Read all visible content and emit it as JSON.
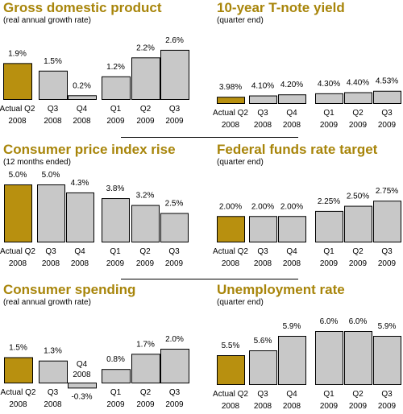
{
  "chart_data": [
    {
      "type": "bar",
      "title": "Gross domestic product",
      "subtitle": "(real annual growth rate)",
      "categories": [
        [
          "Actual Q2",
          "2008"
        ],
        [
          "Q3",
          "2008"
        ],
        [
          "Q4",
          "2008"
        ],
        [
          "Q1",
          "2009"
        ],
        [
          "Q2",
          "2009"
        ],
        [
          "Q3",
          "2009"
        ]
      ],
      "values": [
        1.9,
        1.5,
        0.2,
        1.2,
        2.2,
        2.6
      ],
      "labels": [
        "1.9%",
        "1.5%",
        "0.2%",
        "1.2%",
        "2.2%",
        "2.6%"
      ],
      "highlight_index": 0
    },
    {
      "type": "bar",
      "title": "10-year T-note yield",
      "subtitle": "(quarter end)",
      "categories": [
        [
          "Actual Q2",
          "2008"
        ],
        [
          "Q3",
          "2008"
        ],
        [
          "Q4",
          "2008"
        ],
        [
          "Q1",
          "2009"
        ],
        [
          "Q2",
          "2009"
        ],
        [
          "Q3",
          "2009"
        ]
      ],
      "values": [
        3.98,
        4.1,
        4.2,
        4.3,
        4.4,
        4.53
      ],
      "labels": [
        "3.98%",
        "4.10%",
        "4.20%",
        "4.30%",
        "4.40%",
        "4.53%"
      ],
      "highlight_index": 0
    },
    {
      "type": "bar",
      "title": "Consumer price index rise",
      "subtitle": "(12 months ended)",
      "categories": [
        [
          "Actual Q2",
          "2008"
        ],
        [
          "Q3",
          "2008"
        ],
        [
          "Q4",
          "2008"
        ],
        [
          "Q1",
          "2009"
        ],
        [
          "Q2",
          "2009"
        ],
        [
          "Q3",
          "2009"
        ]
      ],
      "values": [
        5.0,
        5.0,
        4.3,
        3.8,
        3.2,
        2.5
      ],
      "labels": [
        "5.0%",
        "5.0%",
        "4.3%",
        "3.8%",
        "3.2%",
        "2.5%"
      ],
      "highlight_index": 0
    },
    {
      "type": "bar",
      "title": "Federal funds rate target",
      "subtitle": "(quarter end)",
      "categories": [
        [
          "Actual Q2",
          "2008"
        ],
        [
          "Q3",
          "2008"
        ],
        [
          "Q4",
          "2008"
        ],
        [
          "Q1",
          "2009"
        ],
        [
          "Q2",
          "2009"
        ],
        [
          "Q3",
          "2009"
        ]
      ],
      "values": [
        2.0,
        2.0,
        2.0,
        2.25,
        2.5,
        2.75
      ],
      "labels": [
        "2.00%",
        "2.00%",
        "2.00%",
        "2.25%",
        "2.50%",
        "2.75%"
      ],
      "highlight_index": 0
    },
    {
      "type": "bar",
      "title": "Consumer spending",
      "subtitle": "(real annual growth rate)",
      "categories": [
        [
          "Actual Q2",
          "2008"
        ],
        [
          "Q3",
          "2008"
        ],
        [
          "Q4",
          "2008"
        ],
        [
          "Q1",
          "2009"
        ],
        [
          "Q2",
          "2009"
        ],
        [
          "Q3",
          "2009"
        ]
      ],
      "values": [
        1.5,
        1.3,
        -0.3,
        0.8,
        1.7,
        2.0
      ],
      "labels": [
        "1.5%",
        "1.3%",
        "-0.3%",
        "0.8%",
        "1.7%",
        "2.0%"
      ],
      "highlight_index": 0
    },
    {
      "type": "bar",
      "title": "Unemployment rate",
      "subtitle": "(quarter end)",
      "categories": [
        [
          "Actual Q2",
          "2008"
        ],
        [
          "Q3",
          "2008"
        ],
        [
          "Q4",
          "2008"
        ],
        [
          "Q1",
          "2009"
        ],
        [
          "Q2",
          "2009"
        ],
        [
          "Q3",
          "2009"
        ]
      ],
      "values": [
        5.5,
        5.6,
        5.9,
        6.0,
        6.0,
        5.9
      ],
      "labels": [
        "5.5%",
        "5.6%",
        "5.9%",
        "6.0%",
        "6.0%",
        "5.9%"
      ],
      "highlight_index": 0
    }
  ],
  "colors": {
    "title": "#a8850a",
    "highlight_bar": "#b8900f",
    "bar": "#c8c8c8",
    "bar_stroke": "#000000"
  }
}
